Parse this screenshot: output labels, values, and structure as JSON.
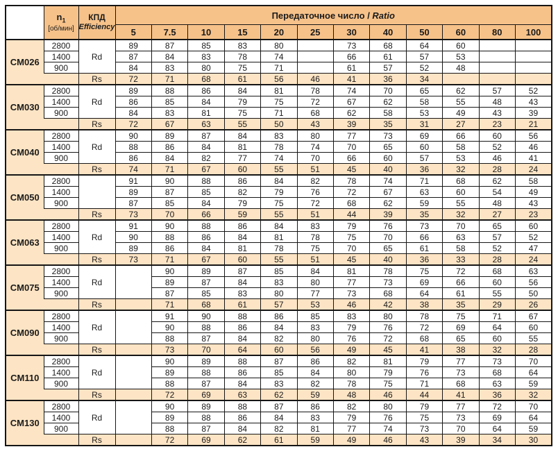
{
  "table": {
    "col_n1": {
      "symbol": "n",
      "sub": "1",
      "unit": "[об/мин]"
    },
    "col_eff": {
      "ru": "КПД",
      "en": "Efficiency"
    },
    "ratio_header": {
      "ru": "Передаточное число / ",
      "en": "Ratio"
    },
    "ratios": [
      "5",
      "7.5",
      "10",
      "15",
      "20",
      "25",
      "30",
      "40",
      "50",
      "60",
      "80",
      "100"
    ],
    "rs_label": "Rs",
    "models": [
      {
        "name": "CM026",
        "eff": "Rd",
        "col5_merged": false,
        "speeds": [
          {
            "rpm": "2800",
            "values": [
              89,
              87,
              85,
              83,
              80,
              null,
              73,
              68,
              64,
              60,
              null,
              null
            ]
          },
          {
            "rpm": "1400",
            "values": [
              87,
              84,
              83,
              78,
              74,
              null,
              66,
              61,
              57,
              53,
              null,
              null
            ]
          },
          {
            "rpm": "900",
            "values": [
              84,
              83,
              80,
              75,
              71,
              null,
              61,
              57,
              52,
              48,
              null,
              null
            ]
          }
        ],
        "rs": [
          72,
          71,
          68,
          61,
          56,
          46,
          41,
          36,
          34,
          null,
          null,
          null
        ]
      },
      {
        "name": "CM030",
        "eff": "Rd",
        "col5_merged": false,
        "speeds": [
          {
            "rpm": "2800",
            "values": [
              89,
              88,
              86,
              84,
              81,
              78,
              74,
              70,
              65,
              62,
              57,
              52
            ]
          },
          {
            "rpm": "1400",
            "values": [
              86,
              85,
              84,
              79,
              75,
              72,
              67,
              62,
              58,
              55,
              48,
              43
            ]
          },
          {
            "rpm": "900",
            "values": [
              84,
              83,
              81,
              75,
              71,
              68,
              62,
              58,
              53,
              49,
              43,
              39
            ]
          }
        ],
        "rs": [
          72,
          67,
          63,
          55,
          50,
          43,
          39,
          35,
          31,
          27,
          23,
          21
        ]
      },
      {
        "name": "CM040",
        "eff": "Rd",
        "col5_merged": false,
        "speeds": [
          {
            "rpm": "2800",
            "values": [
              90,
              89,
              87,
              84,
              83,
              80,
              77,
              73,
              69,
              66,
              60,
              56
            ]
          },
          {
            "rpm": "1400",
            "values": [
              88,
              86,
              84,
              81,
              78,
              74,
              70,
              65,
              60,
              58,
              52,
              46
            ]
          },
          {
            "rpm": "900",
            "values": [
              86,
              84,
              82,
              77,
              74,
              70,
              66,
              60,
              57,
              53,
              46,
              41
            ]
          }
        ],
        "rs": [
          74,
          71,
          67,
          60,
          55,
          51,
          45,
          40,
          36,
          32,
          28,
          24
        ]
      },
      {
        "name": "CM050",
        "eff": "",
        "col5_merged": false,
        "speeds": [
          {
            "rpm": "2800",
            "values": [
              91,
              90,
              88,
              86,
              84,
              82,
              78,
              74,
              71,
              68,
              62,
              58
            ]
          },
          {
            "rpm": "1400",
            "values": [
              89,
              87,
              85,
              82,
              79,
              76,
              72,
              67,
              63,
              60,
              54,
              49
            ]
          },
          {
            "rpm": "900",
            "values": [
              87,
              85,
              84,
              79,
              75,
              72,
              68,
              62,
              59,
              55,
              48,
              43
            ]
          }
        ],
        "rs": [
          73,
          70,
          66,
          59,
          55,
          51,
          44,
          39,
          35,
          32,
          27,
          23
        ]
      },
      {
        "name": "CM063",
        "eff": "Rd",
        "col5_merged": false,
        "speeds": [
          {
            "rpm": "2800",
            "values": [
              91,
              90,
              88,
              86,
              84,
              83,
              79,
              76,
              73,
              70,
              65,
              60
            ]
          },
          {
            "rpm": "1400",
            "values": [
              90,
              88,
              86,
              84,
              81,
              78,
              75,
              70,
              66,
              63,
              57,
              52
            ]
          },
          {
            "rpm": "900",
            "values": [
              89,
              86,
              84,
              81,
              78,
              75,
              70,
              65,
              61,
              58,
              52,
              47
            ]
          }
        ],
        "rs": [
          73,
          71,
          67,
          60,
          55,
          51,
          45,
          40,
          36,
          33,
          28,
          24
        ]
      },
      {
        "name": "CM075",
        "eff": "Rd",
        "col5_merged": true,
        "speeds": [
          {
            "rpm": "2800",
            "values": [
              null,
              90,
              89,
              87,
              85,
              84,
              81,
              78,
              75,
              72,
              68,
              63
            ]
          },
          {
            "rpm": "1400",
            "values": [
              null,
              89,
              87,
              84,
              83,
              80,
              77,
              73,
              69,
              66,
              60,
              56
            ]
          },
          {
            "rpm": "900",
            "values": [
              null,
              87,
              85,
              83,
              80,
              77,
              73,
              68,
              64,
              61,
              55,
              50
            ]
          }
        ],
        "rs": [
          null,
          71,
          68,
          61,
          57,
          53,
          46,
          42,
          38,
          35,
          29,
          26
        ]
      },
      {
        "name": "CM090",
        "eff": "Rd",
        "col5_merged": true,
        "speeds": [
          {
            "rpm": "2800",
            "values": [
              null,
              91,
              90,
              88,
              86,
              85,
              83,
              80,
              78,
              75,
              71,
              67
            ]
          },
          {
            "rpm": "1400",
            "values": [
              null,
              90,
              88,
              86,
              84,
              83,
              79,
              76,
              72,
              69,
              64,
              60
            ]
          },
          {
            "rpm": "900",
            "values": [
              null,
              88,
              87,
              84,
              82,
              80,
              76,
              72,
              68,
              65,
              60,
              55
            ]
          }
        ],
        "rs": [
          null,
          73,
          70,
          64,
          60,
          56,
          49,
          45,
          41,
          38,
          32,
          28
        ]
      },
      {
        "name": "CM110",
        "eff": "Rd",
        "col5_merged": true,
        "speeds": [
          {
            "rpm": "2800",
            "values": [
              null,
              90,
              89,
              88,
              87,
              86,
              82,
              81,
              79,
              77,
              73,
              70
            ]
          },
          {
            "rpm": "1400",
            "values": [
              null,
              89,
              88,
              86,
              85,
              84,
              80,
              79,
              76,
              73,
              68,
              64
            ]
          },
          {
            "rpm": "900",
            "values": [
              null,
              88,
              87,
              84,
              83,
              82,
              78,
              75,
              71,
              68,
              63,
              59
            ]
          }
        ],
        "rs": [
          null,
          72,
          69,
          63,
          62,
          59,
          48,
          46,
          44,
          41,
          36,
          32
        ]
      },
      {
        "name": "CM130",
        "eff": "Rd",
        "col5_merged": true,
        "speeds": [
          {
            "rpm": "2800",
            "values": [
              null,
              90,
              89,
              88,
              87,
              86,
              82,
              80,
              79,
              77,
              72,
              70
            ]
          },
          {
            "rpm": "1400",
            "values": [
              null,
              89,
              88,
              86,
              84,
              83,
              79,
              76,
              75,
              73,
              69,
              64
            ]
          },
          {
            "rpm": "900",
            "values": [
              null,
              88,
              87,
              84,
              82,
              81,
              77,
              74,
              73,
              70,
              64,
              59
            ]
          }
        ],
        "rs": [
          null,
          72,
          69,
          62,
          61,
          59,
          49,
          46,
          43,
          39,
          34,
          30
        ]
      }
    ]
  },
  "colors": {
    "header_bg": "#f6c28a",
    "band_bg": "#fde4c4",
    "border": "#151515",
    "text": "#1b1b1b",
    "cell_bg": "#ffffff"
  }
}
